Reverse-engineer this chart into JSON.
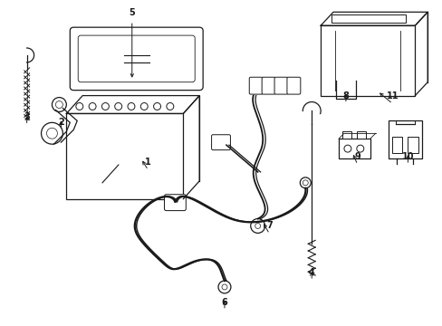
{
  "background_color": "#ffffff",
  "line_color": "#1a1a1a",
  "line_width": 0.9,
  "figsize": [
    4.89,
    3.6
  ],
  "dpi": 100
}
